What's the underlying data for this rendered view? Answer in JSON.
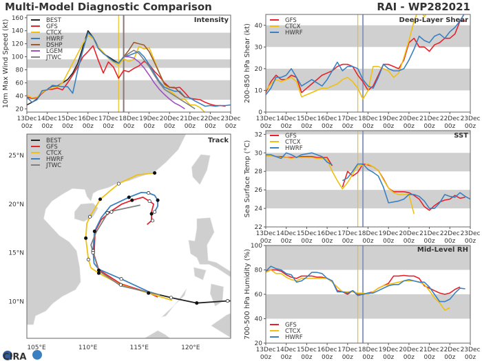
{
  "header": {
    "title": "Multi-Model Diagnostic Comparison",
    "storm": "RAI - WP282021"
  },
  "colors": {
    "BEST": "#222222",
    "GFS": "#e8202a",
    "CTCX": "#f0c010",
    "HWRF": "#3a80c0",
    "DSHP": "#9a5a30",
    "LGEM": "#a050c0",
    "JTWC": "#808080",
    "band": "#d0d0d0",
    "land": "#cfcfcf",
    "init_line_1": "#f0c010",
    "init_line_2": "#8a99bb",
    "init_line_2_intensity": "#8a7575"
  },
  "logo": {
    "text": "CIRA"
  },
  "x_ticks": {
    "dates": [
      "13Dec",
      "14Dec",
      "15Dec",
      "16Dec",
      "17Dec",
      "18Dec",
      "19Dec",
      "20Dec",
      "21Dec",
      "22Dec",
      "23Dec"
    ],
    "hour": "00z"
  },
  "chart_data": [
    {
      "id": "intensity",
      "type": "line",
      "title": "Intensity",
      "ylabel": "10m Max Wind Speed (kt)",
      "xlim": [
        "13Dec 00z",
        "23Dec 00z"
      ],
      "ylim": [
        15,
        164
      ],
      "yticks": [
        20,
        40,
        60,
        80,
        100,
        120,
        140,
        160
      ],
      "bands": [
        [
          34,
          64
        ],
        [
          83,
          96
        ],
        [
          113,
          137
        ]
      ],
      "legend": "top-left",
      "vlines": [
        "17Dec 12z",
        "17Dec 18z"
      ],
      "series": [
        {
          "name": "BEST",
          "start": "13Dec 00z",
          "step_hours": 6,
          "values": [
            26,
            30,
            35,
            45,
            50,
            55,
            55,
            60,
            65,
            75,
            90,
            115,
            140,
            130,
            115,
            105,
            100,
            95,
            90,
            100
          ]
        },
        {
          "name": "GFS",
          "start": "13Dec 00z",
          "step_hours": 6,
          "values": [
            38,
            36,
            37,
            44,
            50,
            50,
            52,
            49,
            60,
            72,
            85,
            100,
            108,
            117,
            95,
            75,
            92,
            84,
            67,
            79,
            77,
            82,
            86,
            93,
            88,
            78,
            70,
            60,
            53,
            52,
            53,
            45,
            36,
            35,
            34,
            30,
            27,
            25,
            25,
            24
          ]
        },
        {
          "name": "CTCX",
          "start": "13Dec 00z",
          "step_hours": 6,
          "values": [
            41,
            37,
            38,
            45,
            50,
            52,
            54,
            60,
            75,
            90,
            105,
            120,
            133,
            128,
            115,
            107,
            98,
            92,
            87,
            97,
            93,
            96,
            116,
            112,
            114,
            95,
            75,
            58,
            48,
            42,
            35,
            35,
            26,
            26,
            22,
            14
          ]
        },
        {
          "name": "HWRF",
          "start": "13Dec 00z",
          "step_hours": 6,
          "values": [
            38,
            30,
            34,
            48,
            49,
            56,
            55,
            54,
            54,
            44,
            80,
            110,
            137,
            130,
            113,
            105,
            99,
            93,
            90,
            100,
            102,
            105,
            108,
            100,
            88,
            75,
            62,
            53,
            50,
            47,
            47,
            38,
            37,
            32,
            28,
            24,
            25,
            24,
            25,
            25,
            26
          ]
        },
        {
          "name": "DSHP",
          "start": "17Dec 18z",
          "step_hours": 6,
          "values": [
            100,
            110,
            122,
            120,
            118,
            108,
            92,
            75,
            58,
            53,
            53,
            45,
            38
          ]
        },
        {
          "name": "LGEM",
          "start": "17Dec 18z",
          "step_hours": 6,
          "values": [
            100,
            100,
            98,
            92,
            83,
            72,
            60,
            50,
            42,
            35,
            29,
            25,
            20
          ]
        },
        {
          "name": "JTWC",
          "start": "17Dec 18z",
          "step_hours": 6,
          "values": [
            100,
            105,
            110,
            105,
            95,
            85,
            72,
            60,
            50,
            45,
            40,
            35,
            30,
            25,
            20
          ]
        }
      ]
    },
    {
      "id": "shear",
      "type": "line",
      "title": "Deep-Layer Shear",
      "ylabel": "200-850 hPa Shear (kt)",
      "xlim": [
        "13Dec 00z",
        "23Dec 00z"
      ],
      "ylim": [
        0,
        45
      ],
      "yticks": [
        0,
        10,
        20,
        30,
        40
      ],
      "bands": [
        [
          10,
          20
        ],
        [
          30,
          40
        ]
      ],
      "legend": "top-left",
      "vlines": [
        "17Dec 12z",
        "17Dec 18z"
      ],
      "series": [
        {
          "name": "GFS",
          "start": "13Dec 00z",
          "step_hours": 6,
          "values": [
            9,
            14,
            17,
            15,
            15,
            17,
            16,
            9,
            11,
            13,
            15,
            17,
            18,
            19,
            21,
            22,
            22,
            21,
            17,
            14,
            10,
            12,
            17,
            22,
            22,
            21,
            20,
            24,
            32,
            34,
            30,
            30,
            28,
            31,
            32,
            34,
            34,
            36,
            42,
            42
          ]
        },
        {
          "name": "CTCX",
          "start": "13Dec 00z",
          "step_hours": 6,
          "values": [
            10,
            13,
            15,
            14,
            15,
            16,
            14,
            7,
            8,
            9,
            10,
            11,
            11,
            12,
            13,
            15,
            16,
            14,
            11,
            6,
            10,
            21,
            21,
            20,
            19,
            16,
            18,
            25,
            33,
            42,
            48,
            44,
            47
          ]
        },
        {
          "name": "HWRF",
          "start": "13Dec 00z",
          "step_hours": 6,
          "values": [
            8,
            11,
            16,
            16,
            17,
            20,
            16,
            12,
            13.5,
            15,
            13.5,
            12,
            15,
            19,
            23,
            19,
            21,
            21,
            20,
            15,
            12,
            11,
            16,
            22,
            20,
            19,
            19,
            20,
            24,
            29,
            35,
            33,
            32,
            35,
            36,
            34,
            37,
            39,
            42,
            46
          ]
        }
      ]
    },
    {
      "id": "sst",
      "type": "line",
      "title": "SST",
      "ylabel": "Sea Surface Temp (°C)",
      "xlim": [
        "13Dec 00z",
        "23Dec 00z"
      ],
      "ylim": [
        22,
        32.4
      ],
      "yticks": [
        22,
        24,
        26,
        28,
        30,
        32
      ],
      "bands": [
        [
          24,
          26
        ],
        [
          28,
          30
        ],
        [
          32,
          32.4
        ]
      ],
      "legend": "top-left",
      "vlines": [
        "17Dec 12z",
        "17Dec 18z"
      ],
      "series": [
        {
          "name": "GFS",
          "start": "13Dec 00z",
          "step_hours": 6,
          "values": [
            29.7,
            29.7,
            29.6,
            29.6,
            29.5,
            29.5,
            29.5,
            29.6,
            29.6,
            29.6,
            29.5,
            29.5,
            29.5,
            28.6,
            null,
            26.3,
            28.0,
            27.5,
            27.9,
            28.8,
            28.7,
            28.5,
            28.1,
            27.2,
            26.2,
            25.8,
            25.8,
            25.8,
            25.7,
            25.4,
            25.0,
            24.2,
            23.8,
            24.3,
            24.7,
            24.9,
            25.0,
            25.4,
            25.1,
            25.2
          ]
        },
        {
          "name": "CTCX",
          "start": "13Dec 00z",
          "step_hours": 6,
          "values": [
            29.7,
            29.7,
            29.6,
            29.5,
            29.5,
            29.4,
            29.5,
            29.5,
            29.5,
            29.5,
            29.4,
            29.4,
            29.3,
            28.0,
            27.0,
            26.1,
            26.8,
            27.7,
            28.7,
            28.6,
            28.8,
            28.5,
            28.1,
            27.1,
            26.2,
            25.7,
            25.5,
            25.5,
            25.5,
            23.4
          ]
        },
        {
          "name": "HWRF",
          "start": "13Dec 00z",
          "step_hours": 6,
          "values": [
            29.8,
            29.8,
            29.6,
            29.4,
            30.0,
            29.8,
            29.5,
            29.8,
            29.9,
            30.0,
            29.8,
            29.6,
            29.0,
            28.7,
            null,
            27.0,
            27.3,
            28.0,
            28.8,
            28.8,
            28.2,
            27.9,
            27.5,
            26.3,
            24.6,
            24.7,
            24.8,
            25.0,
            25.5,
            25.5,
            25.3,
            24.8,
            24.0,
            24.0,
            24.6,
            25.5,
            25.3,
            25.2,
            25.7,
            25.3,
            25.0
          ]
        }
      ]
    },
    {
      "id": "rh",
      "type": "line",
      "title": "Mid-Level RH",
      "ylabel": "700-500 hPa Humidity (%)",
      "xlim": [
        "13Dec 00z",
        "23Dec 00z"
      ],
      "ylim": [
        20,
        100
      ],
      "yticks": [
        20,
        40,
        60,
        80,
        100
      ],
      "bands": [
        [
          40,
          60
        ],
        [
          80,
          100
        ]
      ],
      "legend": "bottom-left",
      "vlines": [
        "17Dec 12z",
        "17Dec 18z"
      ],
      "series": [
        {
          "name": "GFS",
          "start": "13Dec 00z",
          "step_hours": 6,
          "values": [
            79,
            80,
            80,
            79,
            76,
            74,
            73,
            75,
            75,
            75,
            74,
            74,
            73,
            71,
            63,
            62,
            60,
            63,
            60,
            60,
            61,
            62,
            65,
            67,
            69,
            75,
            75,
            75.5,
            75,
            75,
            73,
            67,
            65,
            63,
            61,
            60,
            61,
            64,
            66
          ]
        },
        {
          "name": "CTCX",
          "start": "13Dec 00z",
          "step_hours": 6,
          "values": [
            78,
            80,
            77,
            77,
            74,
            72,
            71,
            73,
            73,
            73,
            73,
            73,
            73,
            70,
            66,
            62,
            62,
            62,
            61,
            61,
            60,
            62,
            65,
            67,
            68,
            69,
            70,
            71,
            71,
            71,
            70,
            68,
            63,
            57,
            53,
            47,
            49
          ]
        },
        {
          "name": "HWRF",
          "start": "13Dec 00z",
          "step_hours": 6,
          "values": [
            79,
            83,
            81,
            80,
            77,
            76,
            70,
            71,
            74,
            78,
            78,
            77,
            73,
            71,
            62,
            62,
            61,
            63,
            59,
            60,
            61,
            61,
            63,
            65,
            67,
            68,
            68,
            71,
            72,
            71,
            70,
            70,
            66,
            60,
            54,
            54,
            56,
            61,
            65,
            64.5
          ]
        }
      ]
    },
    {
      "id": "track",
      "type": "line",
      "title": "Track",
      "legend": "top-left",
      "xlim": [
        104.06,
        123.9
      ],
      "ylim": [
        6.2,
        27.2
      ],
      "xticks": [
        {
          "v": 105,
          "label": "105°E"
        },
        {
          "v": 110,
          "label": "110°E"
        },
        {
          "v": 115,
          "label": "115°E"
        },
        {
          "v": 120,
          "label": "120°E"
        }
      ],
      "yticks": [
        {
          "v": 10,
          "label": "10°N"
        },
        {
          "v": 15,
          "label": "15°N"
        },
        {
          "v": 20,
          "label": "20°N"
        },
        {
          "v": 25,
          "label": "25°N"
        }
      ],
      "series": [
        {
          "name": "BEST",
          "lon": [
            124.9,
            123.6,
            120.6,
            118.1,
            117.0
          ],
          "lat": [
            10.05,
            10.05,
            9.83,
            10.38,
            10.66
          ]
        },
        {
          "name": "GFS",
          "lon": [
            116.8,
            115.9,
            113.2,
            111.06,
            110.6,
            110.7,
            111.3,
            112.3,
            113.3,
            114.3,
            115.36,
            116.0,
            116.4,
            116.2,
            116.2,
            115.76
          ],
          "lat": [
            10.45,
            10.9,
            11.8,
            13.25,
            14.8,
            17.2,
            18.4,
            19.3,
            20.0,
            20.4,
            20.7,
            20.3,
            20.0,
            19.2,
            18.3,
            17.9
          ]
        },
        {
          "name": "CTCX",
          "lon": [
            118.2,
            115.9,
            113.2,
            111.06,
            110.3,
            110.05,
            109.8,
            109.9,
            110.2,
            111.2,
            113.0,
            114.8,
            116.5
          ],
          "lat": [
            10.1,
            10.85,
            11.7,
            12.9,
            13.45,
            14.3,
            16.5,
            18.0,
            18.7,
            20.5,
            22.1,
            23.0,
            23.2
          ]
        },
        {
          "name": "HWRF",
          "lon": [
            117.0,
            115.9,
            113.25,
            111.06,
            110.6,
            110.5,
            110.65,
            111.3,
            112.2,
            114.0,
            115.2,
            115.9,
            116.5,
            116.8,
            116.8,
            116.5
          ],
          "lat": [
            10.66,
            11.0,
            12.3,
            13.3,
            13.9,
            15.2,
            17.2,
            18.6,
            19.8,
            20.7,
            21.2,
            21.15,
            20.9,
            20.4,
            19.8,
            19.2
          ]
        },
        {
          "name": "JTWC",
          "lon": [
            117.0,
            113.2,
            111.06,
            110.3,
            110.8,
            112.0,
            115.1
          ],
          "lat": [
            10.66,
            11.6,
            13.15,
            15.8,
            17.1,
            19.2,
            19.9
          ]
        }
      ],
      "markers": [
        {
          "lon": 123.6,
          "lat": 10.05,
          "filled": false
        },
        {
          "lon": 120.6,
          "lat": 9.83,
          "filled": true
        },
        {
          "lon": 118.1,
          "lat": 10.38,
          "filled": false
        },
        {
          "lon": 115.9,
          "lat": 10.85,
          "filled": true
        },
        {
          "lon": 113.2,
          "lat": 11.7,
          "filled": false
        },
        {
          "lon": 111.06,
          "lat": 12.9,
          "filled": true
        },
        {
          "lon": 110.05,
          "lat": 14.3,
          "filled": false
        },
        {
          "lon": 109.8,
          "lat": 16.5,
          "filled": true
        },
        {
          "lon": 110.2,
          "lat": 18.7,
          "filled": false
        },
        {
          "lon": 111.2,
          "lat": 20.5,
          "filled": true
        },
        {
          "lon": 113.0,
          "lat": 22.1,
          "filled": false
        },
        {
          "lon": 116.5,
          "lat": 23.2,
          "filled": true
        },
        {
          "lon": 113.25,
          "lat": 12.3,
          "filled": false
        },
        {
          "lon": 111.06,
          "lat": 13.2,
          "filled": true
        },
        {
          "lon": 110.5,
          "lat": 15.2,
          "filled": false
        },
        {
          "lon": 110.65,
          "lat": 17.2,
          "filled": true
        },
        {
          "lon": 111.9,
          "lat": 19.1,
          "filled": false
        },
        {
          "lon": 112.3,
          "lat": 19.2,
          "filled": false
        },
        {
          "lon": 114.0,
          "lat": 20.7,
          "filled": true
        },
        {
          "lon": 115.9,
          "lat": 21.15,
          "filled": false
        },
        {
          "lon": 116.8,
          "lat": 20.4,
          "filled": true
        },
        {
          "lon": 116.5,
          "lat": 19.2,
          "filled": false
        },
        {
          "lon": 114.3,
          "lat": 20.4,
          "filled": true
        },
        {
          "lon": 116.0,
          "lat": 20.3,
          "filled": false
        },
        {
          "lon": 116.2,
          "lat": 19.0,
          "filled": true
        },
        {
          "lon": 116.3,
          "lat": 18.3,
          "filled": false
        },
        {
          "lon": 110.5,
          "lat": 15.0,
          "filled": false
        }
      ]
    }
  ]
}
